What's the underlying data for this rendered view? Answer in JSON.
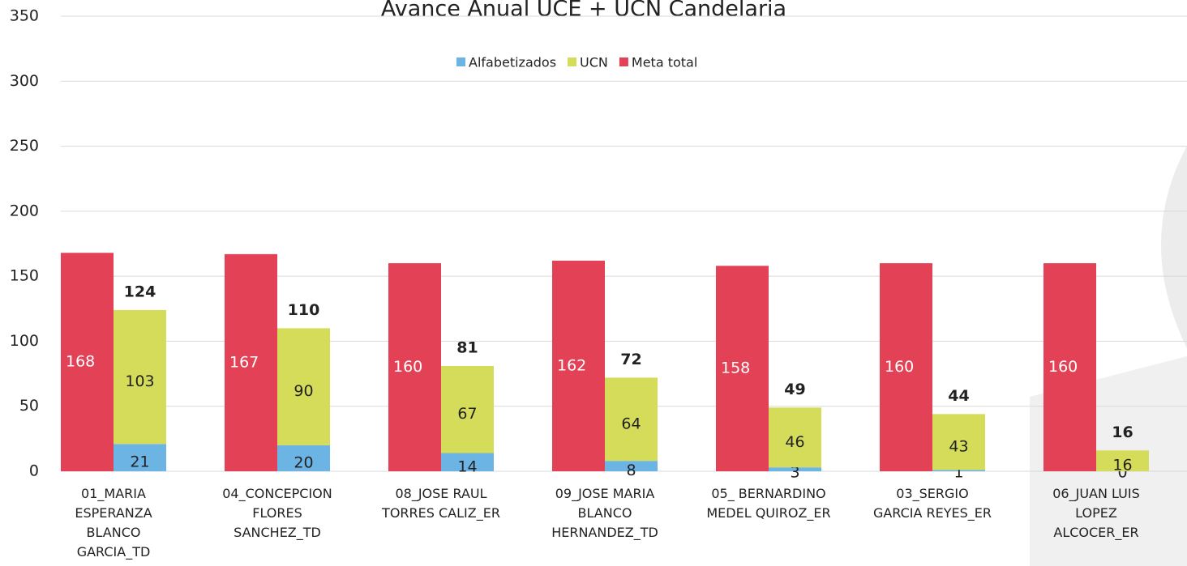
{
  "chart_data": {
    "type": "bar",
    "title": "Avance Anual UCE + UCN Candelaria",
    "categories": [
      "01_MARIA\nESPERANZA\nBLANCO\nGARCIA_TD",
      "04_CONCEPCION\nFLORES\nSANCHEZ_TD",
      "08_JOSE RAUL\nTORRES CALIZ_ER",
      "09_JOSE MARIA\nBLANCO\nHERNANDEZ_TD",
      "05_ BERNARDINO\nMEDEL QUIROZ_ER",
      "03_SERGIO\nGARCIA REYES_ER",
      "06_JUAN LUIS\nLOPEZ\nALCOCER_ER"
    ],
    "series": [
      {
        "name": "Alfabetizados",
        "color": "#6cb4e4",
        "values": [
          21,
          20,
          14,
          8,
          3,
          1,
          0
        ],
        "stack": "a"
      },
      {
        "name": "UCN",
        "color": "#d4dc5a",
        "values": [
          103,
          90,
          67,
          64,
          46,
          43,
          16
        ],
        "stack": "a"
      },
      {
        "name": "Meta total",
        "color": "#e34155",
        "values": [
          168,
          167,
          160,
          162,
          158,
          160,
          160
        ],
        "stack": "m"
      }
    ],
    "totals": [
      124,
      110,
      81,
      72,
      49,
      44,
      16
    ],
    "ylim": [
      0,
      350
    ],
    "yticks": [
      0,
      50,
      100,
      150,
      200,
      250,
      300,
      350
    ],
    "grid": true,
    "legend": "top"
  }
}
